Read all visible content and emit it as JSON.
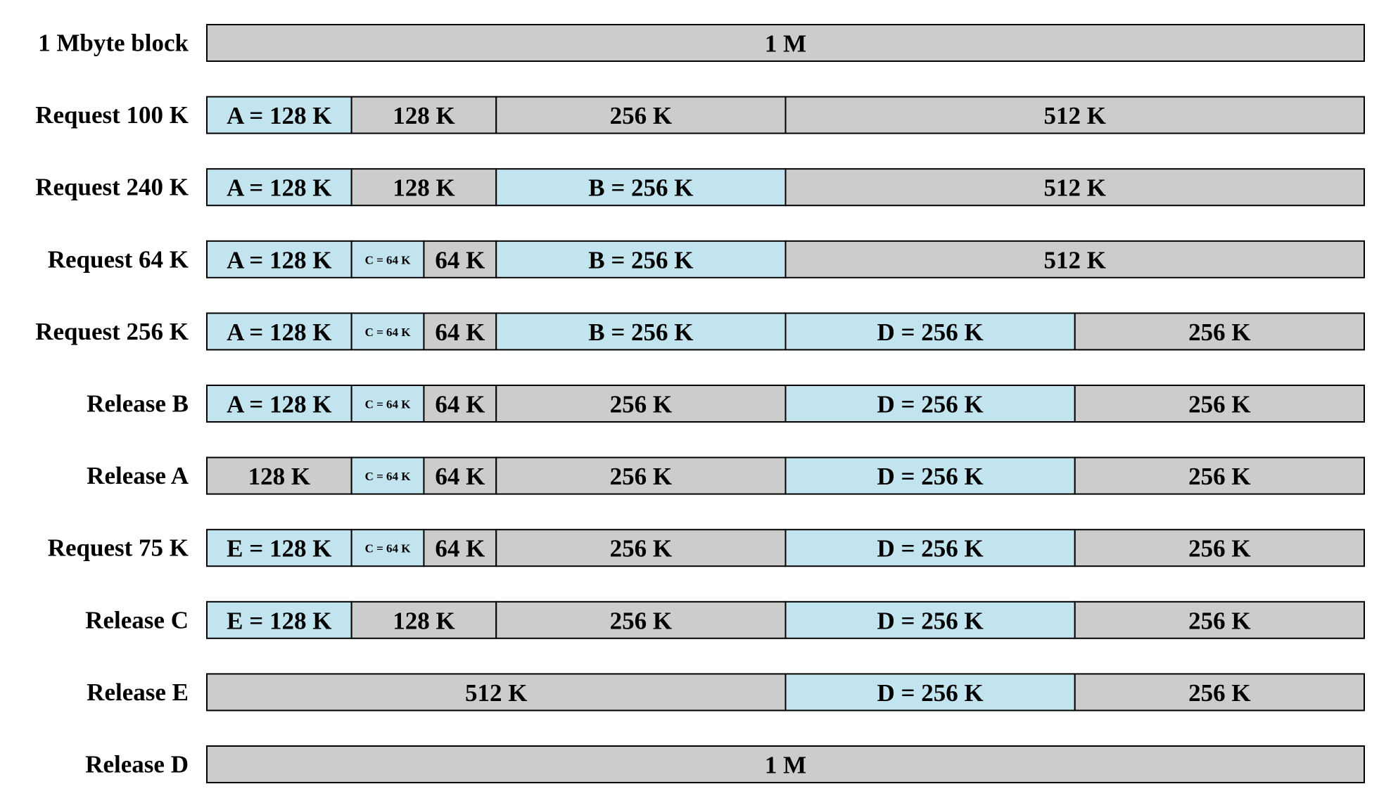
{
  "rows": [
    {
      "label": "1 Mbyte block",
      "segments": [
        "1 M"
      ]
    },
    {
      "label": "Request 100 K",
      "segments": [
        "A = 128 K",
        "128 K",
        "256 K",
        "512 K"
      ]
    },
    {
      "label": "Request 240 K",
      "segments": [
        "A = 128 K",
        "128 K",
        "B = 256 K",
        "512 K"
      ]
    },
    {
      "label": "Request 64 K",
      "segments": [
        "A = 128 K",
        "C = 64 K",
        "64 K",
        "B = 256 K",
        "512 K"
      ]
    },
    {
      "label": "Request 256 K",
      "segments": [
        "A = 128 K",
        "C = 64 K",
        "64 K",
        "B = 256 K",
        "D = 256 K",
        "256 K"
      ]
    },
    {
      "label": "Release B",
      "segments": [
        "A = 128 K",
        "C = 64 K",
        "64 K",
        "256 K",
        "D = 256 K",
        "256 K"
      ]
    },
    {
      "label": "Release A",
      "segments": [
        "128 K",
        "C = 64 K",
        "64 K",
        "256 K",
        "D = 256 K",
        "256 K"
      ]
    },
    {
      "label": "Request 75 K",
      "segments": [
        "E = 128 K",
        "C = 64 K",
        "64 K",
        "256 K",
        "D = 256 K",
        "256 K"
      ]
    },
    {
      "label": "Release C",
      "segments": [
        "E = 128 K",
        "128 K",
        "256 K",
        "D = 256 K",
        "256 K"
      ]
    },
    {
      "label": "Release E",
      "segments": [
        "512 K",
        "D = 256 K",
        "256 K"
      ]
    },
    {
      "label": "Release D",
      "segments": [
        "1 M"
      ]
    }
  ]
}
